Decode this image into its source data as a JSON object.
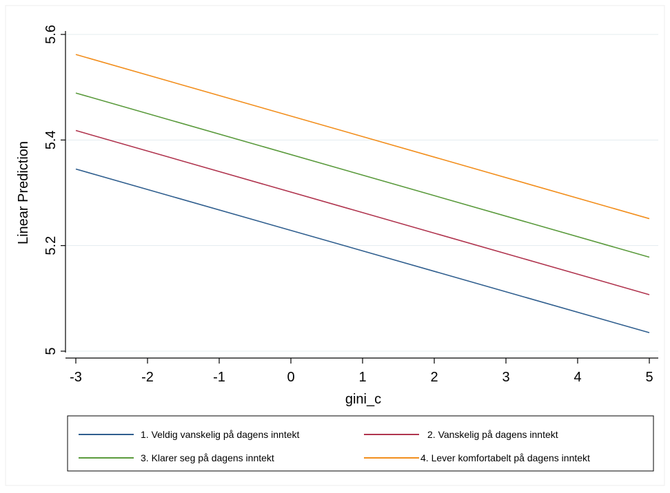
{
  "chart_data": {
    "type": "line",
    "title": "",
    "xlabel": "gini_c",
    "ylabel": "Linear Prediction",
    "xlim": [
      -3,
      5
    ],
    "ylim": [
      5.0,
      5.6
    ],
    "xticks": [
      -3,
      -2,
      -1,
      0,
      1,
      2,
      3,
      4,
      5
    ],
    "xtick_labels": [
      "-3",
      "-2",
      "-1",
      "0",
      "1",
      "2",
      "3",
      "4",
      "5"
    ],
    "yticks": [
      5.0,
      5.2,
      5.4,
      5.6
    ],
    "ytick_labels": [
      "5",
      "5.2",
      "5.4",
      "5.6"
    ],
    "grid": "horizontal",
    "legend_position": "bottom",
    "series": [
      {
        "name": "1. Veldig vanskelig på dagens inntekt",
        "color": "#2f5e8e",
        "x": [
          -3,
          5
        ],
        "y": [
          5.345,
          5.035
        ]
      },
      {
        "name": "2. Vanskelig på dagens inntekt",
        "color": "#b0344e",
        "x": [
          -3,
          5
        ],
        "y": [
          5.418,
          5.107
        ]
      },
      {
        "name": "3. Klarer seg på dagens inntekt",
        "color": "#5a9a3c",
        "x": [
          -3,
          5
        ],
        "y": [
          5.489,
          5.178
        ]
      },
      {
        "name": "4. Lever komfortabelt på dagens inntekt",
        "color": "#f28e1c",
        "x": [
          -3,
          5
        ],
        "y": [
          5.562,
          5.251
        ]
      }
    ]
  }
}
